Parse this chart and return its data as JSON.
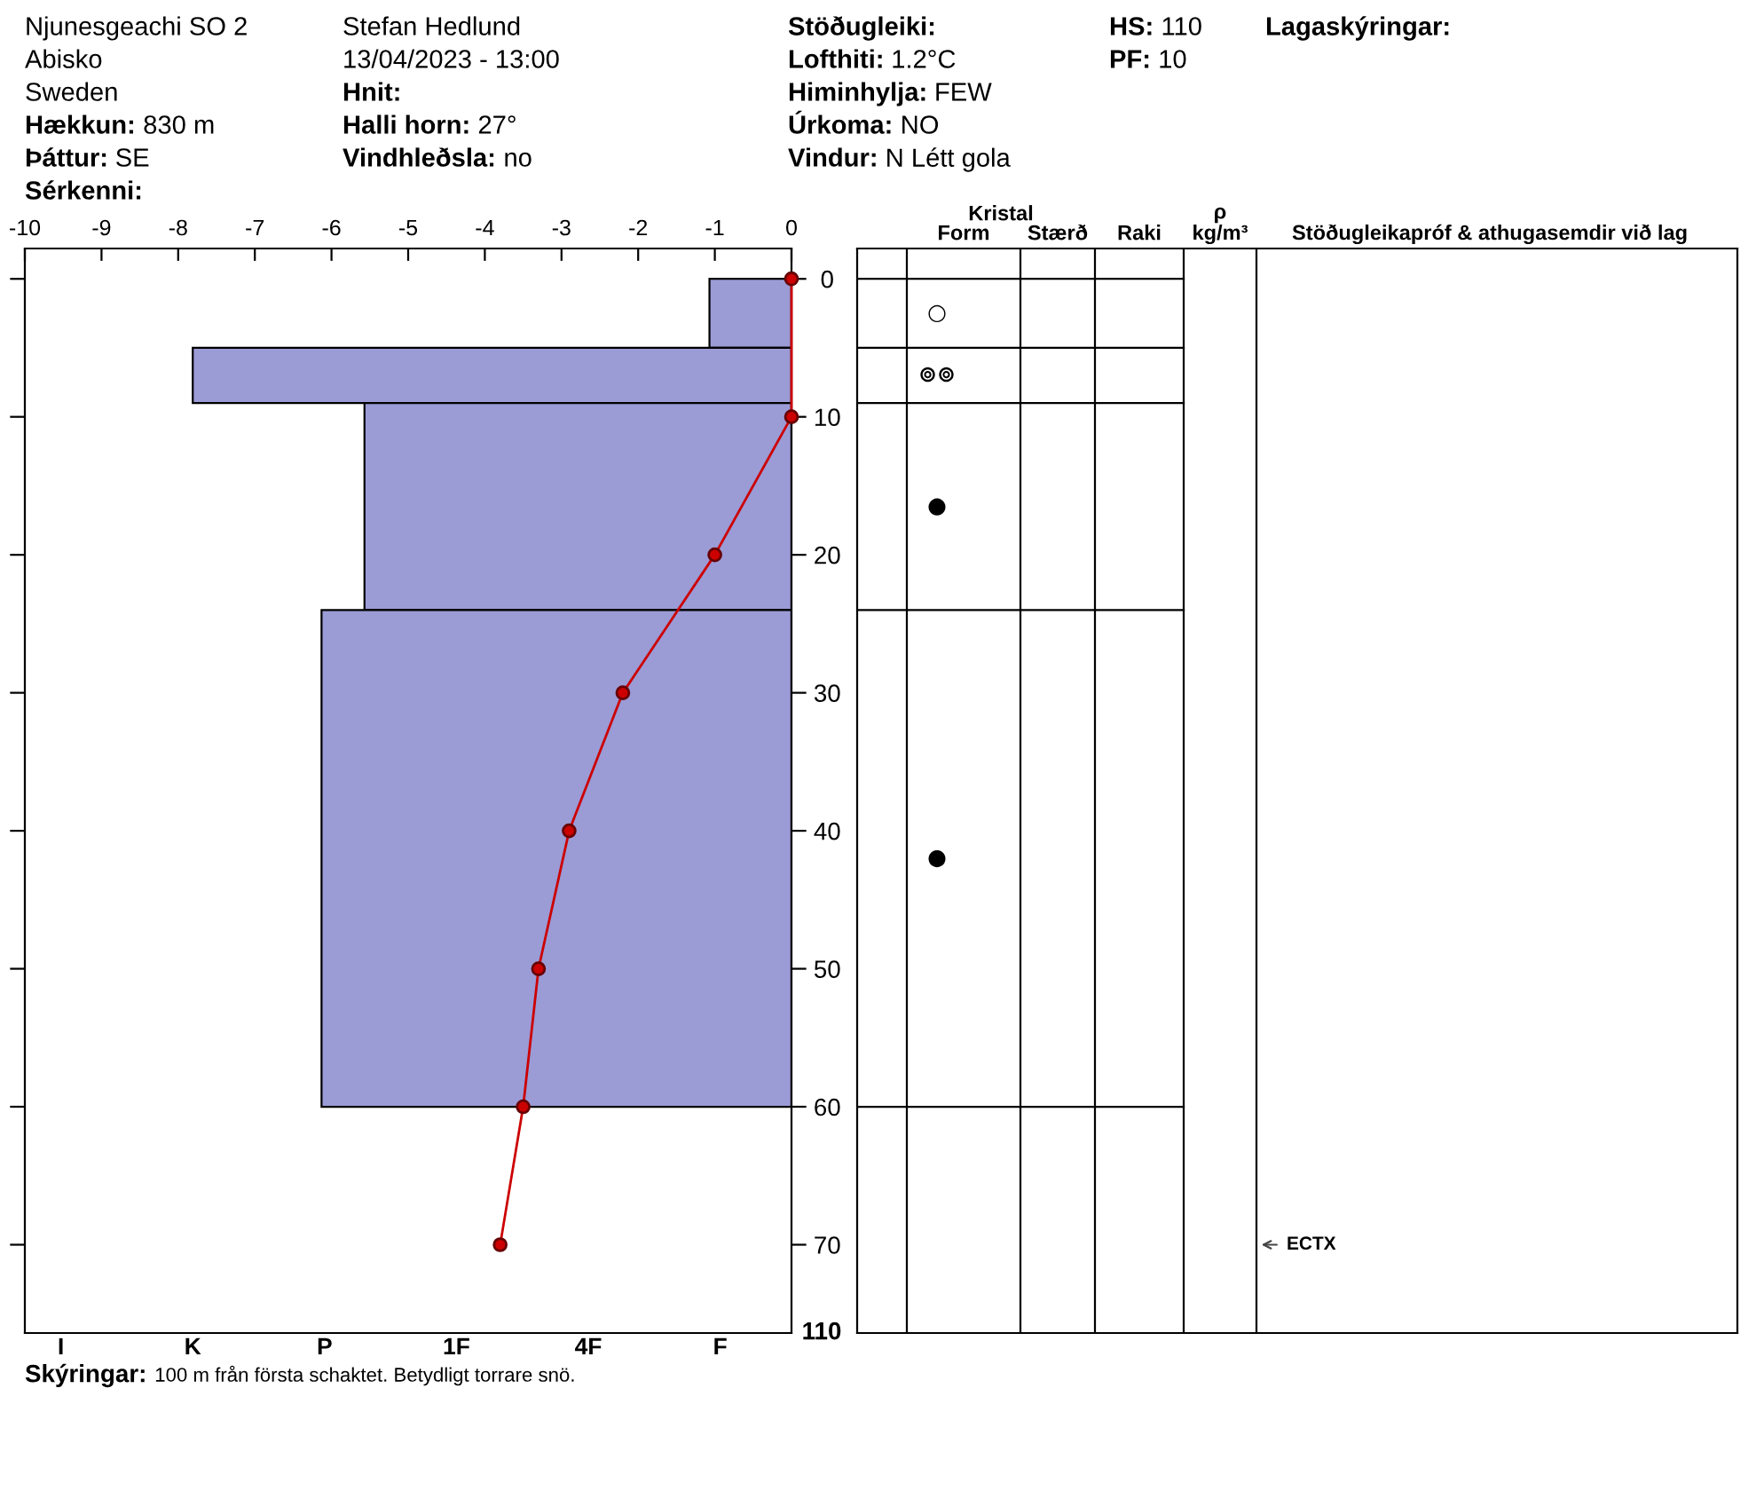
{
  "chart_data": [
    {
      "type": "other",
      "annotations": [
        "Njunesgeachi SO 2\nAbisko\nSweden\nHækkun: 830 m\nÞáttur: SE\nSérkenni:",
        "Stefan Hedlund\n13/04/2023 - 13:00\nHnit:\nHalli horn: 27°\nVindhleðsla: no",
        "Stöðugleiki:\nLofthiti: 1.2°C\nHiminhylja: FEW\nÚrkoma: NO\nVindur: N Létt gola",
        "HS: 110\nPF: 10",
        "Lagaskýringar:"
      ]
    },
    {
      "type": "bar",
      "orientation": "horizontal",
      "xlim": [
        -10,
        0
      ],
      "xticks": [
        -10,
        -9,
        -8,
        -7,
        -6,
        -5,
        -4,
        -3,
        -2,
        -1,
        0
      ],
      "ylim": [
        76.4,
        -2.2
      ],
      "yticks": [
        0,
        10,
        20,
        30,
        40,
        50,
        60,
        70
      ],
      "series": [
        {
          "type": "histogram",
          "color": "#9b9bd6",
          "bins": [
            0,
            5,
            9,
            24,
            60
          ],
          "values": [
            -1.07,
            -7.81,
            -5.57,
            -6.13
          ]
        },
        {
          "type": "line",
          "color": "#cc0000",
          "marker": "circle",
          "x": [
            0,
            10,
            20,
            30,
            40,
            50,
            60,
            70
          ],
          "values": [
            0,
            0,
            -1.0,
            -2.2,
            -2.9,
            -3.3,
            -3.5,
            -3.8
          ]
        }
      ],
      "annotations": [
        "I",
        "K",
        "P",
        "1F",
        "4F",
        "F",
        "ECTX",
        "Skýringar: 100 m från första schaktet. Betydligt torrare snö."
      ]
    },
    {
      "type": "other",
      "categories": [
        null,
        "Form",
        "Stærð",
        "Raki",
        "ρ\nkg/m³",
        "Stöðugleikapróf & athugasemdir við lag"
      ],
      "annotations": [
        "Kristal",
        "110",
        "○",
        "⊚⊚",
        "●",
        "●"
      ]
    }
  ]
}
